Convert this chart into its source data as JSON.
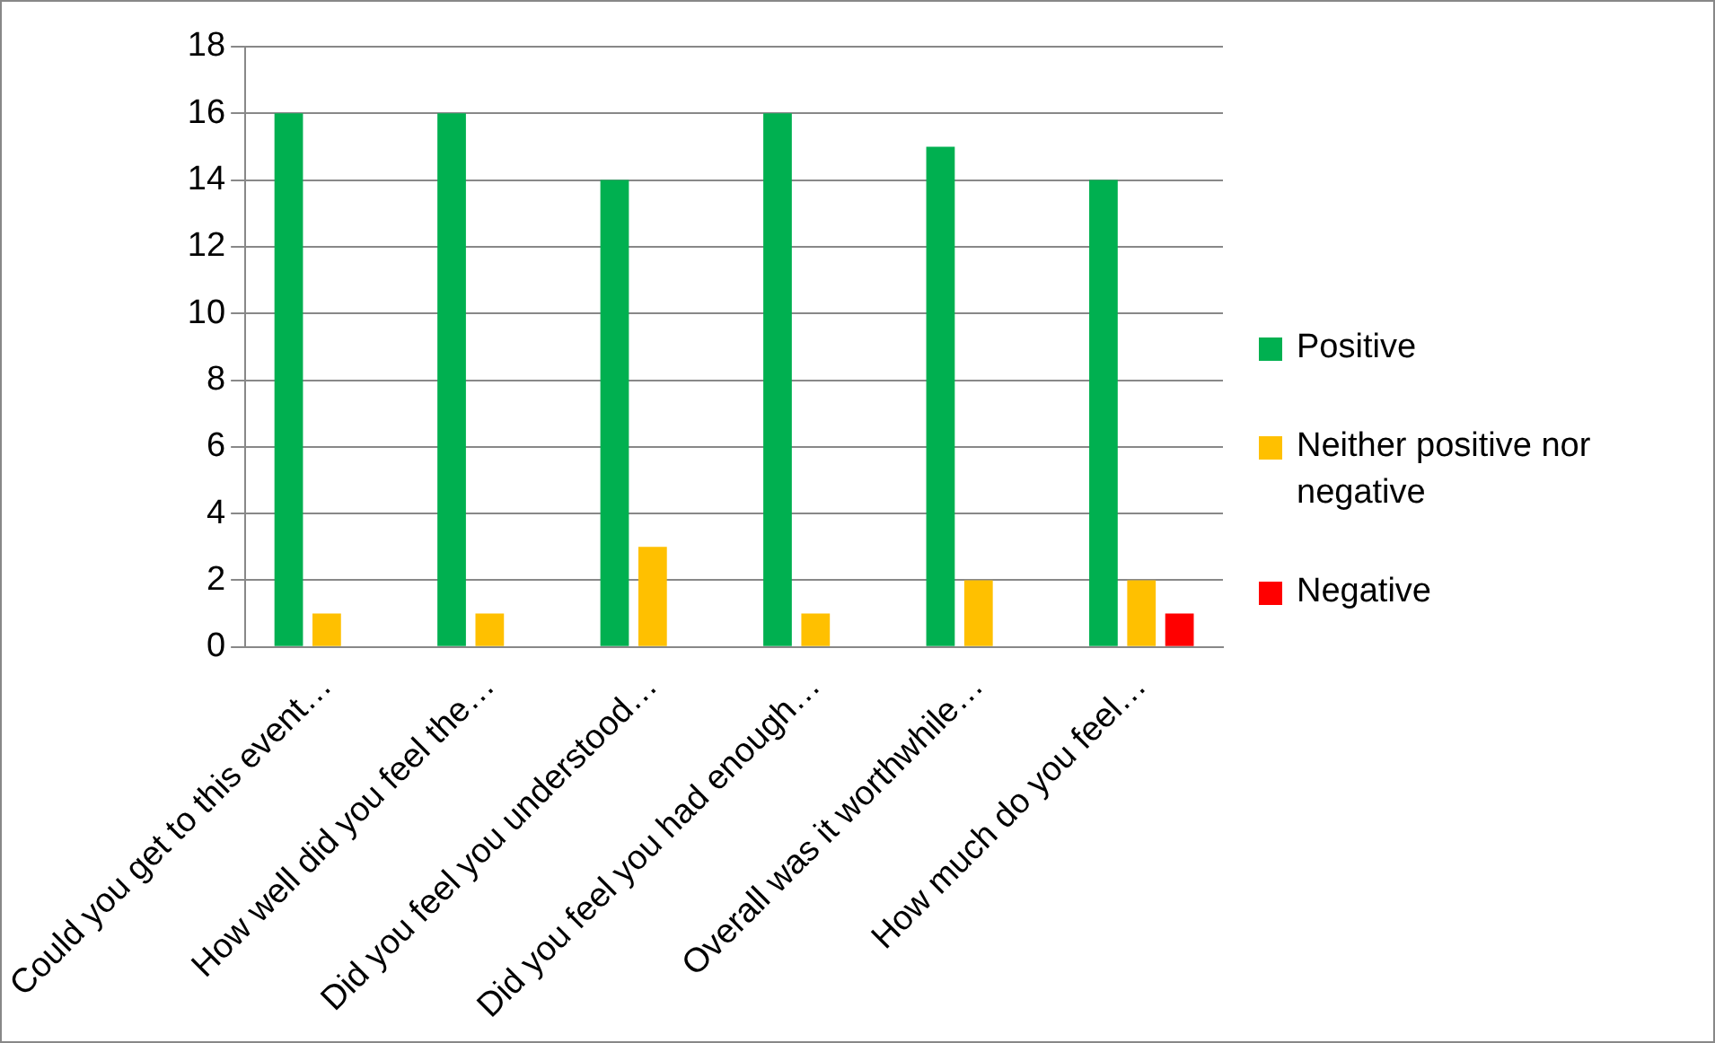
{
  "chart_data": {
    "type": "bar",
    "categories": [
      "Could you get to this event…",
      "How well did you feel the…",
      "Did you feel you understood…",
      "Did you feel you had enough…",
      "Overall was it worthwhile…",
      "How much do you feel…"
    ],
    "series": [
      {
        "name": "Positive",
        "color": "#00b050",
        "values": [
          16,
          16,
          14,
          16,
          15,
          14
        ]
      },
      {
        "name": "Neither positive nor negative",
        "color": "#ffc000",
        "values": [
          1,
          1,
          3,
          1,
          2,
          2
        ]
      },
      {
        "name": "Negative",
        "color": "#ff0000",
        "values": [
          0,
          0,
          0,
          0,
          0,
          1
        ]
      }
    ],
    "ylim": [
      0,
      18
    ],
    "yticks": [
      0,
      2,
      4,
      6,
      8,
      10,
      12,
      14,
      16,
      18
    ],
    "grid": "y",
    "legend": "right"
  }
}
